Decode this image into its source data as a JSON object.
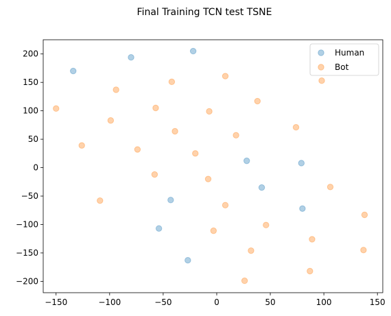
{
  "chart_data": {
    "type": "scatter",
    "title": "Final Training TCN test TSNE",
    "xlabel": "",
    "ylabel": "",
    "xlim": [
      -162,
      155
    ],
    "ylim": [
      -220,
      225
    ],
    "xticks": [
      -150,
      -100,
      -50,
      0,
      50,
      100,
      150
    ],
    "yticks": [
      -200,
      -150,
      -100,
      -50,
      0,
      50,
      100,
      150,
      200
    ],
    "grid": false,
    "legend_position": "top-right",
    "series": [
      {
        "name": "Human",
        "color": "#1f77b4",
        "points": [
          [
            -134,
            170
          ],
          [
            -80,
            194
          ],
          [
            -22,
            205
          ],
          [
            28,
            12
          ],
          [
            79,
            8
          ],
          [
            42,
            -35
          ],
          [
            -43,
            -57
          ],
          [
            -54,
            -107
          ],
          [
            80,
            -72
          ],
          [
            -27,
            -163
          ]
        ]
      },
      {
        "name": "Bot",
        "color": "#ff7f0e",
        "points": [
          [
            -150,
            104
          ],
          [
            -94,
            137
          ],
          [
            -42,
            151
          ],
          [
            8,
            161
          ],
          [
            98,
            153
          ],
          [
            -57,
            105
          ],
          [
            -7,
            99
          ],
          [
            38,
            117
          ],
          [
            -99,
            83
          ],
          [
            74,
            71
          ],
          [
            -39,
            64
          ],
          [
            18,
            57
          ],
          [
            -126,
            39
          ],
          [
            -74,
            32
          ],
          [
            -20,
            25
          ],
          [
            -58,
            -12
          ],
          [
            -8,
            -20
          ],
          [
            106,
            -34
          ],
          [
            -109,
            -58
          ],
          [
            8,
            -66
          ],
          [
            138,
            -83
          ],
          [
            46,
            -101
          ],
          [
            -3,
            -111
          ],
          [
            89,
            -126
          ],
          [
            32,
            -146
          ],
          [
            137,
            -145
          ],
          [
            87,
            -182
          ],
          [
            26,
            -199
          ]
        ]
      }
    ]
  }
}
